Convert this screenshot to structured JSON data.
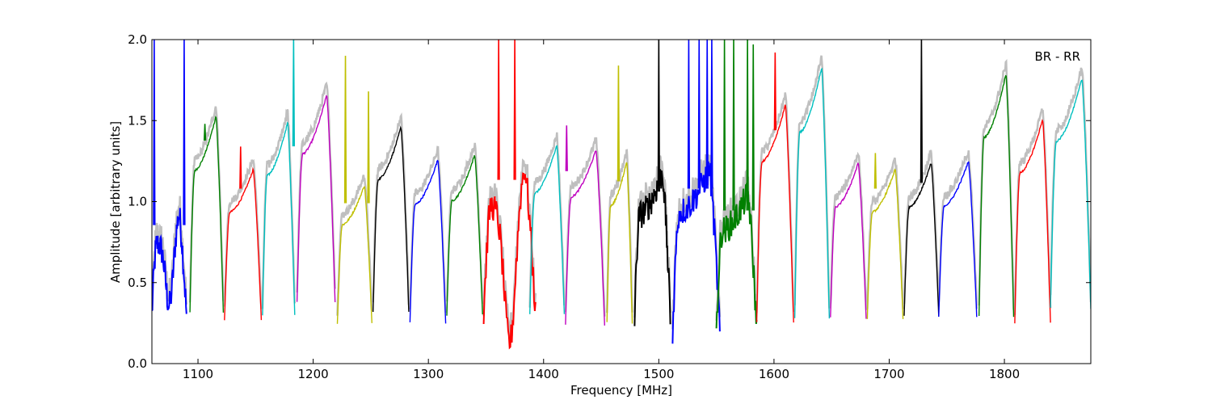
{
  "chart_data": {
    "type": "line",
    "xlabel": "Frequency [MHz]",
    "ylabel": "Amplitude [arbitrary units]",
    "annotation": "BR - RR",
    "xlim": [
      1060,
      1875
    ],
    "ylim": [
      0.0,
      2.0
    ],
    "xticks": [
      1100,
      1200,
      1300,
      1400,
      1500,
      1600,
      1700,
      1800
    ],
    "yticks": [
      0.0,
      0.5,
      1.0,
      1.5,
      2.0
    ],
    "ytick_labels": [
      "0.0",
      "0.5",
      "1.0",
      "1.5",
      "2.0"
    ],
    "grid": false,
    "legend": "none",
    "background_series_color": "#bfbfbf",
    "band_colors": [
      "#0000ff",
      "#008000",
      "#ff0000",
      "#00bfbf",
      "#bf00bf",
      "#bfbf00",
      "#000000"
    ],
    "bands": [
      {
        "start": 1060,
        "end": 1090,
        "color": "#0000ff",
        "peak": 0.95,
        "dip": 0.36,
        "noisy": true,
        "spikes": [
          [
            1062,
            2.0
          ],
          [
            1088,
            2.0
          ]
        ]
      },
      {
        "start": 1093,
        "end": 1122,
        "color": "#008000",
        "peak": 1.53,
        "edge": 0.32,
        "rise": 1.0,
        "spikes": [
          [
            1106,
            1.48
          ]
        ]
      },
      {
        "start": 1123,
        "end": 1155,
        "color": "#ff0000",
        "peak": 1.2,
        "edge": 0.27,
        "spikes": [
          [
            1137,
            1.34
          ]
        ]
      },
      {
        "start": 1156,
        "end": 1184,
        "color": "#00bfbf",
        "peak": 1.49,
        "edge": 0.3,
        "spikes": [
          [
            1183,
            2.0
          ]
        ]
      },
      {
        "start": 1186,
        "end": 1219,
        "color": "#bf00bf",
        "peak": 1.66,
        "edge": 0.38
      },
      {
        "start": 1221,
        "end": 1251,
        "color": "#bfbf00",
        "peak": 1.1,
        "edge": 0.25,
        "spikes": [
          [
            1228,
            1.9
          ],
          [
            1248,
            1.68
          ]
        ]
      },
      {
        "start": 1252,
        "end": 1283,
        "color": "#000000",
        "peak": 1.46,
        "edge": 0.32
      },
      {
        "start": 1284,
        "end": 1315,
        "color": "#0000ff",
        "peak": 1.26,
        "edge": 0.25
      },
      {
        "start": 1316,
        "end": 1347,
        "color": "#008000",
        "peak": 1.29,
        "edge": 0.3
      },
      {
        "start": 1348,
        "end": 1393,
        "color": "#ff0000",
        "peak": 1.26,
        "dip": 0.13,
        "noisy": true,
        "spikes": [
          [
            1361,
            2.0
          ],
          [
            1375,
            2.0
          ]
        ]
      },
      {
        "start": 1388,
        "end": 1418,
        "color": "#00bfbf",
        "peak": 1.35,
        "edge": 0.3
      },
      {
        "start": 1419,
        "end": 1453,
        "color": "#bf00bf",
        "peak": 1.32,
        "edge": 0.24,
        "spikes": [
          [
            1420,
            1.47
          ]
        ]
      },
      {
        "start": 1455,
        "end": 1477,
        "color": "#bfbf00",
        "peak": 1.25,
        "edge": 0.25,
        "spikes": [
          [
            1465,
            1.84
          ]
        ]
      },
      {
        "start": 1479,
        "end": 1510,
        "color": "#000000",
        "peak": 1.18,
        "edge": 0.28,
        "noisy": true,
        "spikes": [
          [
            1500,
            2.0
          ]
        ]
      },
      {
        "start": 1512,
        "end": 1553,
        "color": "#0000ff",
        "peak": 1.2,
        "edge": 0.19,
        "noisy": true,
        "spikes": [
          [
            1526,
            2.0
          ],
          [
            1535,
            2.0
          ],
          [
            1542,
            2.0
          ],
          [
            1546,
            2.0
          ]
        ]
      },
      {
        "start": 1550,
        "end": 1585,
        "color": "#008000",
        "peak": 1.05,
        "edge": 0.2,
        "noisy": true,
        "spikes": [
          [
            1557,
            2.0
          ],
          [
            1565,
            2.0
          ],
          [
            1577,
            2.0
          ],
          [
            1582,
            1.97
          ]
        ]
      },
      {
        "start": 1585,
        "end": 1617,
        "color": "#ff0000",
        "peak": 1.6,
        "edge": 0.25,
        "spikes": [
          [
            1601,
            1.92
          ]
        ]
      },
      {
        "start": 1618,
        "end": 1648,
        "color": "#00bfbf",
        "peak": 1.83,
        "edge": 0.28
      },
      {
        "start": 1649,
        "end": 1680,
        "color": "#bf00bf",
        "peak": 1.24,
        "edge": 0.28
      },
      {
        "start": 1681,
        "end": 1712,
        "color": "#bfbf00",
        "peak": 1.2,
        "edge": 0.28,
        "spikes": [
          [
            1688,
            1.3
          ]
        ]
      },
      {
        "start": 1713,
        "end": 1743,
        "color": "#000000",
        "peak": 1.24,
        "edge": 0.29,
        "spikes": [
          [
            1728,
            2.0
          ]
        ]
      },
      {
        "start": 1743,
        "end": 1776,
        "color": "#0000ff",
        "peak": 1.25,
        "edge": 0.29
      },
      {
        "start": 1778,
        "end": 1808,
        "color": "#008000",
        "peak": 1.79,
        "edge": 0.29
      },
      {
        "start": 1809,
        "end": 1840,
        "color": "#ff0000",
        "peak": 1.51,
        "edge": 0.25
      },
      {
        "start": 1840,
        "end": 1875,
        "color": "#00bfbf",
        "peak": 1.76,
        "edge": 0.34
      }
    ]
  }
}
